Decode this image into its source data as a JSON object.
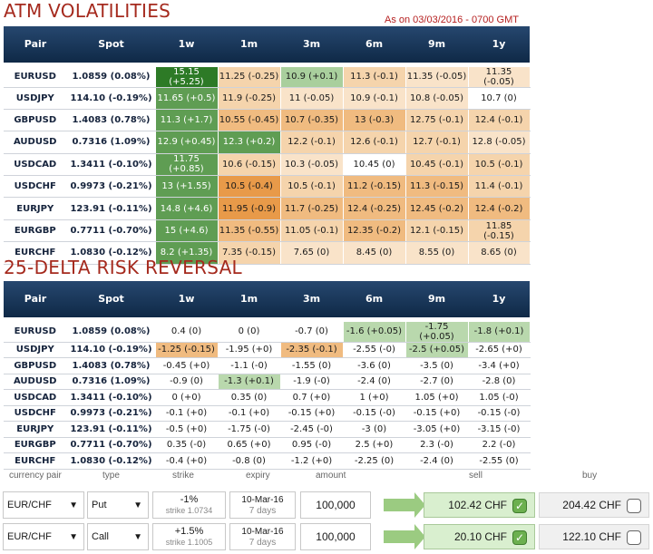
{
  "atm": {
    "title": "ATM VOLATILITIES",
    "as_of": "As on 03/03/2016 - 0700 GMT",
    "headers": [
      "Pair",
      "Spot",
      "1w",
      "1m",
      "3m",
      "6m",
      "9m",
      "1y"
    ],
    "rows": [
      {
        "pair": "EURUSD",
        "spot": "1.0859 (0.08%)",
        "cells": [
          "15.15 (+5.25)",
          "11.25 (-0.25)",
          "10.9 (+0.1)",
          "11.3 (-0.1)",
          "11.35 (-0.05)",
          "11.35 (-0.05)"
        ],
        "colors": [
          "c-ld",
          "c-lo",
          "c-lgg",
          "c-lo",
          "c-pale",
          "c-pale"
        ]
      },
      {
        "pair": "USDJPY",
        "spot": "114.10 (-0.19%)",
        "cells": [
          "11.65 (+0.5)",
          "11.9 (-0.25)",
          "11 (-0.05)",
          "10.9 (-0.1)",
          "10.8 (-0.05)",
          "10.7 (0)"
        ],
        "colors": [
          "c-lg",
          "c-lo",
          "c-pale",
          "c-pale",
          "c-pale",
          "c-w"
        ]
      },
      {
        "pair": "GBPUSD",
        "spot": "1.4083 (0.78%)",
        "cells": [
          "11.3 (+1.7)",
          "10.55 (-0.45)",
          "10.7 (-0.35)",
          "13 (-0.3)",
          "12.75 (-0.1)",
          "12.4 (-0.1)"
        ],
        "colors": [
          "c-lg",
          "c-o",
          "c-o",
          "c-o",
          "c-lo",
          "c-lo"
        ]
      },
      {
        "pair": "AUDUSD",
        "spot": "0.7316 (1.09%)",
        "cells": [
          "12.9 (+0.45)",
          "12.3 (+0.2)",
          "12.2 (-0.1)",
          "12.6 (-0.1)",
          "12.7 (-0.1)",
          "12.8 (-0.05)"
        ],
        "colors": [
          "c-lg",
          "c-lg",
          "c-lo",
          "c-lo",
          "c-lo",
          "c-pale"
        ]
      },
      {
        "pair": "USDCAD",
        "spot": "1.3411 (-0.10%)",
        "cells": [
          "11.75 (+0.85)",
          "10.6 (-0.15)",
          "10.3 (-0.05)",
          "10.45 (0)",
          "10.45 (-0.1)",
          "10.5 (-0.1)"
        ],
        "colors": [
          "c-lg",
          "c-lo",
          "c-pale",
          "c-w",
          "c-lo",
          "c-lo"
        ]
      },
      {
        "pair": "USDCHF",
        "spot": "0.9973 (-0.21%)",
        "cells": [
          "13 (+1.55)",
          "10.5 (-0.4)",
          "10.5 (-0.1)",
          "11.2 (-0.15)",
          "11.3 (-0.15)",
          "11.4 (-0.1)"
        ],
        "colors": [
          "c-lg",
          "c-do",
          "c-lo",
          "c-o",
          "c-o",
          "c-lo"
        ]
      },
      {
        "pair": "EURJPY",
        "spot": "123.91 (-0.11%)",
        "cells": [
          "14.8 (+4.6)",
          "11.95 (-0.9)",
          "11.7 (-0.25)",
          "12.4 (-0.25)",
          "12.45 (-0.2)",
          "12.4 (-0.2)"
        ],
        "colors": [
          "c-lg",
          "c-do",
          "c-o",
          "c-o",
          "c-o",
          "c-o"
        ]
      },
      {
        "pair": "EURGBP",
        "spot": "0.7711 (-0.70%)",
        "cells": [
          "15 (+4.6)",
          "11.35 (-0.55)",
          "11.05 (-0.1)",
          "12.35 (-0.2)",
          "12.1 (-0.15)",
          "11.85 (-0.15)"
        ],
        "colors": [
          "c-lg",
          "c-o",
          "c-lo",
          "c-o",
          "c-lo",
          "c-lo"
        ]
      },
      {
        "pair": "EURCHF",
        "spot": "1.0830 (-0.12%)",
        "cells": [
          "8.2 (+1.35)",
          "7.35 (-0.15)",
          "7.65 (0)",
          "8.45 (0)",
          "8.55 (0)",
          "8.65 (0)"
        ],
        "colors": [
          "c-lg",
          "c-lo",
          "c-pale",
          "c-pale",
          "c-pale",
          "c-pale"
        ]
      }
    ]
  },
  "rr": {
    "title": "25-DELTA RISK REVERSAL",
    "headers": [
      "Pair",
      "Spot",
      "1w",
      "1m",
      "3m",
      "6m",
      "9m",
      "1y"
    ],
    "rows": [
      {
        "pair": "EURUSD",
        "spot": "1.0859 (0.08%)",
        "cells": [
          "0.4 (0)",
          "0 (0)",
          "-0.7 (0)",
          "-1.6 (+0.05)",
          "-1.75 (+0.05)",
          "-1.8 (+0.1)"
        ],
        "colors": [
          "c-w",
          "c-w",
          "c-w",
          "c-lg2",
          "c-lg2",
          "c-lg2"
        ]
      },
      {
        "pair": "USDJPY",
        "spot": "114.10 (-0.19%)",
        "cells": [
          "-1.25 (-0.15)",
          "-1.95 (+0)",
          "-2.35 (-0.1)",
          "-2.55 (-0)",
          "-2.5 (+0.05)",
          "-2.65 (+0)"
        ],
        "colors": [
          "c-o",
          "c-w",
          "c-o",
          "c-w",
          "c-lg2",
          "c-w"
        ]
      },
      {
        "pair": "GBPUSD",
        "spot": "1.4083 (0.78%)",
        "cells": [
          "-0.45 (+0)",
          "-1.1 (-0)",
          "-1.55 (0)",
          "-3.6 (0)",
          "-3.5 (0)",
          "-3.4 (+0)"
        ],
        "colors": [
          "c-w",
          "c-w",
          "c-w",
          "c-w",
          "c-w",
          "c-w"
        ]
      },
      {
        "pair": "AUDUSD",
        "spot": "0.7316 (1.09%)",
        "cells": [
          "-0.9 (0)",
          "-1.3 (+0.1)",
          "-1.9 (-0)",
          "-2.4 (0)",
          "-2.7 (0)",
          "-2.8 (0)"
        ],
        "colors": [
          "c-w",
          "c-lg2",
          "c-w",
          "c-w",
          "c-w",
          "c-w"
        ]
      },
      {
        "pair": "USDCAD",
        "spot": "1.3411 (-0.10%)",
        "cells": [
          "0 (+0)",
          "0.35 (0)",
          "0.7 (+0)",
          "1 (+0)",
          "1.05 (+0)",
          "1.05 (-0)"
        ],
        "colors": [
          "c-w",
          "c-w",
          "c-w",
          "c-w",
          "c-w",
          "c-w"
        ]
      },
      {
        "pair": "USDCHF",
        "spot": "0.9973 (-0.21%)",
        "cells": [
          "-0.1 (+0)",
          "-0.1 (+0)",
          "-0.15 (+0)",
          "-0.15 (-0)",
          "-0.15 (+0)",
          "-0.15 (-0)"
        ],
        "colors": [
          "c-w",
          "c-w",
          "c-w",
          "c-w",
          "c-w",
          "c-w"
        ]
      },
      {
        "pair": "EURJPY",
        "spot": "123.91 (-0.11%)",
        "cells": [
          "-0.5 (+0)",
          "-1.75 (-0)",
          "-2.45 (-0)",
          "-3 (0)",
          "-3.05 (+0)",
          "-3.15 (-0)"
        ],
        "colors": [
          "c-w",
          "c-w",
          "c-w",
          "c-w",
          "c-w",
          "c-w"
        ]
      },
      {
        "pair": "EURGBP",
        "spot": "0.7711 (-0.70%)",
        "cells": [
          "0.35 (-0)",
          "0.65 (+0)",
          "0.95 (-0)",
          "2.5 (+0)",
          "2.3 (-0)",
          "2.2 (-0)"
        ],
        "colors": [
          "c-w",
          "c-w",
          "c-w",
          "c-w",
          "c-w",
          "c-w"
        ]
      },
      {
        "pair": "EURCHF",
        "spot": "1.0830 (-0.12%)",
        "cells": [
          "-0.4 (+0)",
          "-0.8 (0)",
          "-1.2 (+0)",
          "-2.25 (0)",
          "-2.4 (0)",
          "-2.55 (0)"
        ],
        "colors": [
          "c-w",
          "c-w",
          "c-w",
          "c-w",
          "c-w",
          "c-w"
        ]
      }
    ]
  },
  "options": {
    "headers": {
      "currency_pair": "currency pair",
      "type": "type",
      "strike": "strike",
      "expiry": "expiry",
      "amount": "amount",
      "sell": "sell",
      "buy": "buy"
    },
    "rows": [
      {
        "pair": "EUR/CHF",
        "type": "Put",
        "strike": "-1%",
        "strike_sub": "strike 1.0734",
        "expiry": "10-Mar-16",
        "expiry_sub": "7 days",
        "amount": "100,000",
        "sell": "102.42 CHF",
        "sell_checked": true,
        "buy": "204.42 CHF",
        "buy_checked": false
      },
      {
        "pair": "EUR/CHF",
        "type": "Call",
        "strike": "+1.5%",
        "strike_sub": "strike 1.1005",
        "expiry": "10-Mar-16",
        "expiry_sub": "7 days",
        "amount": "100,000",
        "sell": "20.10 CHF",
        "sell_checked": true,
        "buy": "122.10 CHF",
        "buy_checked": false
      }
    ]
  },
  "colors": {
    "title_red": "#a52a1e",
    "header_navy": "#0f2947",
    "green_dark": "#2d7a26",
    "green": "#5f9d53",
    "orange": "#f0bb80",
    "orange_dark": "#e89a49"
  }
}
